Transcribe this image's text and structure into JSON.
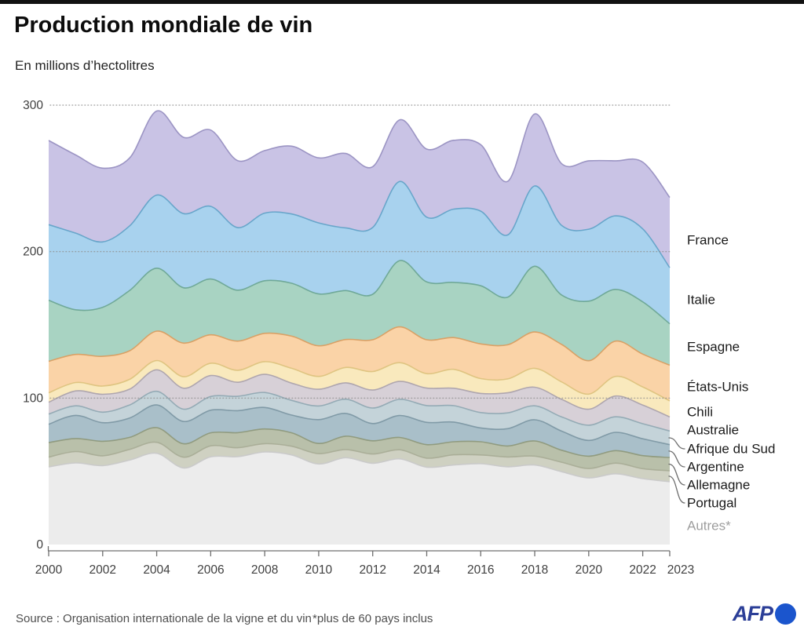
{
  "header": {
    "title": "Production mondiale de vin",
    "subtitle": "En millions d’hectolitres"
  },
  "footer": {
    "source": "Source : Organisation internationale de la vigne et du vin",
    "footnote": "*plus de 60 pays inclus",
    "logo_text": "AFP"
  },
  "colors": {
    "top_bar": "#111111",
    "axis": "#6f6f6f",
    "grid_dots": "#8f8f8f",
    "tick_label": "#3f3f3f",
    "legend_label": "#1a1a1a",
    "legend_label_muted": "#9e9e9e",
    "afp_text": "#2b3e97",
    "afp_globe": "#1b55cd"
  },
  "chart_data": {
    "type": "area",
    "stacked": true,
    "title": "Production mondiale de vin",
    "unit": "millions d'hectolitres",
    "grid": "dotted horizontal",
    "legend_position": "right",
    "ylim": [
      0,
      300
    ],
    "y_ticks": [
      0,
      100,
      200,
      300
    ],
    "x_ticks": [
      2000,
      2002,
      2004,
      2006,
      2008,
      2010,
      2012,
      2014,
      2016,
      2018,
      2020,
      2022,
      2023
    ],
    "x": [
      2000,
      2001,
      2002,
      2003,
      2004,
      2005,
      2006,
      2007,
      2008,
      2009,
      2010,
      2011,
      2012,
      2013,
      2014,
      2015,
      2016,
      2017,
      2018,
      2019,
      2020,
      2021,
      2022,
      2023
    ],
    "series": [
      {
        "name": "France",
        "fill": "#c9c3e5",
        "stroke": "#9890c1",
        "values": [
          57.5,
          53.4,
          50.4,
          46.4,
          57.4,
          52.1,
          52.1,
          45.7,
          42.7,
          46.3,
          44.4,
          50.8,
          41.5,
          42.1,
          46.5,
          47.0,
          45.4,
          36.6,
          49.2,
          42.2,
          46.7,
          37.6,
          45.6,
          48.0
        ]
      },
      {
        "name": "Italie",
        "fill": "#a8d2ee",
        "stroke": "#63a3c8",
        "values": [
          51.6,
          52.3,
          44.6,
          44.1,
          49.9,
          50.6,
          49.6,
          42.7,
          46.2,
          47.3,
          48.5,
          42.8,
          45.6,
          54.0,
          44.2,
          50.0,
          50.9,
          42.5,
          54.8,
          47.5,
          49.1,
          50.2,
          49.8,
          38.3
        ]
      },
      {
        "name": "Espagne",
        "fill": "#a8d3c2",
        "stroke": "#6da795",
        "values": [
          41.7,
          30.5,
          33.5,
          41.2,
          43.0,
          37.8,
          38.1,
          34.8,
          35.9,
          36.1,
          35.4,
          33.4,
          31.1,
          45.3,
          39.5,
          37.7,
          39.7,
          32.5,
          44.9,
          33.7,
          40.7,
          35.3,
          35.7,
          28.3
        ]
      },
      {
        "name": "États-Unis",
        "fill": "#fad3a7",
        "stroke": "#d99e62",
        "values": [
          21.5,
          19.2,
          20.3,
          19.5,
          20.1,
          22.9,
          19.4,
          19.9,
          19.3,
          22.0,
          20.9,
          19.1,
          21.7,
          24.4,
          23.1,
          21.7,
          23.7,
          23.3,
          24.8,
          25.6,
          22.8,
          24.1,
          22.4,
          24.3
        ]
      },
      {
        "name": "Chili",
        "fill": "#f9e9bd",
        "stroke": "#ddc37e",
        "values": [
          6.4,
          5.7,
          5.6,
          6.7,
          6.3,
          7.9,
          8.4,
          8.2,
          8.7,
          10.1,
          8.8,
          10.5,
          12.6,
          12.8,
          9.9,
          12.9,
          10.1,
          9.5,
          12.9,
          11.9,
          10.3,
          13.4,
          12.4,
          11.0
        ]
      },
      {
        "name": "Australie",
        "fill": "#d7d0d7",
        "stroke": "#aca3ad",
        "values": [
          8.1,
          10.2,
          12.2,
          10.8,
          14.7,
          14.3,
          14.3,
          9.6,
          12.4,
          11.8,
          11.4,
          11.2,
          12.3,
          12.3,
          11.9,
          11.9,
          13.1,
          13.7,
          12.7,
          12.0,
          10.9,
          14.2,
          12.7,
          9.6
        ]
      },
      {
        "name": "Afrique du Sud",
        "fill": "#c4d3d9",
        "stroke": "#91a9b3",
        "values": [
          7.0,
          6.5,
          7.2,
          8.9,
          9.3,
          8.4,
          9.4,
          9.8,
          10.2,
          10.0,
          9.3,
          9.7,
          10.6,
          11.0,
          11.5,
          11.2,
          10.5,
          10.8,
          9.5,
          9.7,
          10.4,
          10.6,
          10.3,
          9.3
        ]
      },
      {
        "name": "Argentine",
        "fill": "#a9bfc9",
        "stroke": "#7d98a4",
        "values": [
          12.5,
          15.8,
          12.7,
          13.2,
          15.5,
          15.2,
          15.4,
          15.0,
          14.7,
          12.1,
          16.3,
          15.5,
          11.8,
          15.0,
          15.2,
          13.4,
          9.4,
          11.8,
          14.5,
          13.0,
          10.8,
          12.5,
          11.5,
          8.8
        ]
      },
      {
        "name": "Allemagne",
        "fill": "#b9c0aa",
        "stroke": "#8e997c",
        "values": [
          9.9,
          8.9,
          9.9,
          8.2,
          10.0,
          9.2,
          8.9,
          10.3,
          10.0,
          9.2,
          6.9,
          9.1,
          9.0,
          8.4,
          9.2,
          8.9,
          9.0,
          7.5,
          10.3,
          8.2,
          8.4,
          8.5,
          8.9,
          9.0
        ]
      },
      {
        "name": "Portugal",
        "fill": "#cfd1c2",
        "stroke": "#a9ad97",
        "values": [
          6.7,
          7.8,
          6.7,
          7.3,
          7.5,
          7.3,
          7.5,
          6.1,
          5.7,
          5.9,
          7.1,
          5.6,
          6.3,
          6.2,
          6.2,
          7.0,
          6.0,
          6.7,
          6.1,
          6.5,
          6.4,
          7.3,
          6.8,
          7.5
        ]
      },
      {
        "name": "Autres*",
        "fill": "#ececec",
        "stroke": "#c9c9c9",
        "label_color": "#9e9e9e",
        "values": [
          53.0,
          55.7,
          53.9,
          57.7,
          62.3,
          52.3,
          59.9,
          60.0,
          63.2,
          61.2,
          55.0,
          59.3,
          55.5,
          58.5,
          52.8,
          54.3,
          55.2,
          53.1,
          54.3,
          49.7,
          45.5,
          48.3,
          45.0,
          42.9
        ]
      }
    ]
  }
}
